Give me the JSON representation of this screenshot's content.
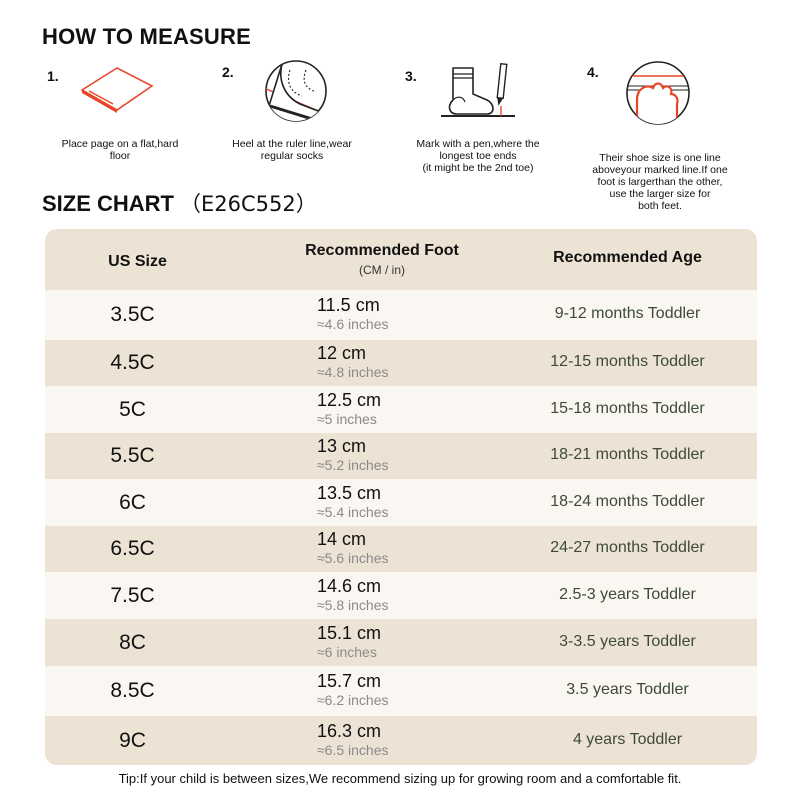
{
  "measure": {
    "title": "HOW TO MEASURE",
    "steps": [
      {
        "num": "1.",
        "caption_lines": [
          "Place page on a flat,hard",
          "floor"
        ],
        "icon": "paper-page-icon"
      },
      {
        "num": "2.",
        "caption_lines": [
          "Heel at the ruler line,wear",
          "regular socks"
        ],
        "icon": "heel-ruler-icon"
      },
      {
        "num": "3.",
        "caption_lines": [
          "Mark with a pen,where the",
          "longest toe ends",
          "(it might be the 2nd toe)"
        ],
        "icon": "sock-pen-icon"
      },
      {
        "num": "4.",
        "caption_lines": [
          "Their shoe size is one line",
          "aboveyour marked line.If one",
          "foot is largerthan the other,",
          "use the larger size for",
          "both feet."
        ],
        "icon": "toe-line-icon"
      }
    ]
  },
  "size_chart": {
    "title": "SIZE CHART",
    "model": "（E26C552）",
    "headers": {
      "us_size": "US Size",
      "foot": "Recommended Foot",
      "foot_unit": "(CM / in)",
      "age": "Recommended Age"
    },
    "rows": [
      {
        "size": "3.5C",
        "cm": "11.5 cm",
        "inches": "≈4.6 inches",
        "age": "9-12 months Toddler"
      },
      {
        "size": "4.5C",
        "cm": "12 cm",
        "inches": "≈4.8 inches",
        "age": "12-15 months Toddler"
      },
      {
        "size": "5C",
        "cm": "12.5 cm",
        "inches": "≈5 inches",
        "age": "15-18 months Toddler"
      },
      {
        "size": "5.5C",
        "cm": "13 cm",
        "inches": "≈5.2 inches",
        "age": "18-21 months Toddler"
      },
      {
        "size": "6C",
        "cm": "13.5 cm",
        "inches": "≈5.4 inches",
        "age": "18-24 months Toddler"
      },
      {
        "size": "6.5C",
        "cm": "14 cm",
        "inches": "≈5.6 inches",
        "age": "24-27 months Toddler"
      },
      {
        "size": "7.5C",
        "cm": "14.6 cm",
        "inches": "≈5.8 inches",
        "age": "2.5-3 years Toddler"
      },
      {
        "size": "8C",
        "cm": "15.1 cm",
        "inches": "≈6 inches",
        "age": "3-3.5 years Toddler"
      },
      {
        "size": "8.5C",
        "cm": "15.7 cm",
        "inches": "≈6.2 inches",
        "age": "3.5 years Toddler"
      },
      {
        "size": "9C",
        "cm": "16.3 cm",
        "inches": "≈6.5 inches",
        "age": "4 years Toddler"
      }
    ]
  },
  "tip": "Tip:If your child is between sizes,We recommend sizing up for growing room and a comfortable fit.",
  "colors": {
    "accent": "#e8462b",
    "header_bg": "#ede3d5",
    "light_row": "#faf6f1",
    "age_text": "#3d4b36"
  }
}
